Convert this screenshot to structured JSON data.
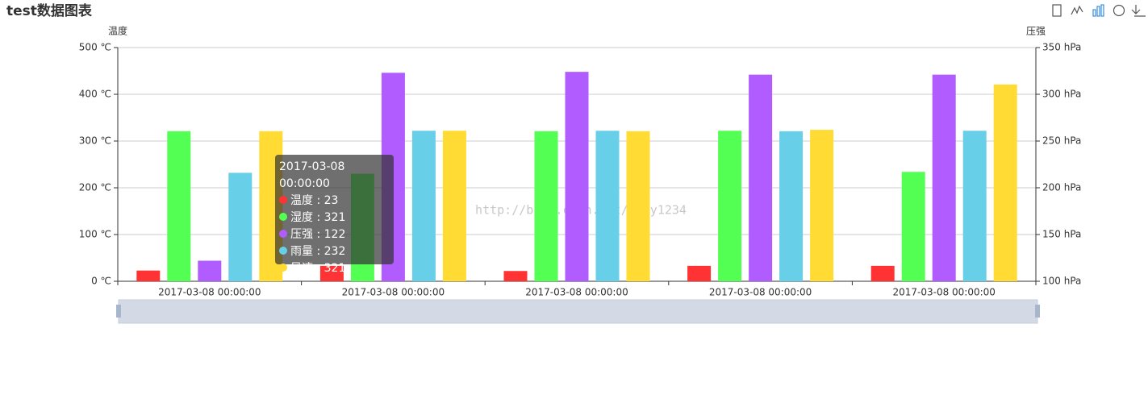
{
  "chart_data": {
    "type": "bar",
    "title": "test数据图表",
    "y_label": "温度",
    "y2_label": "压强",
    "watermark": "http://blog.csdn.net/Aray1234",
    "categories": [
      "2017-03-08 00:00:00",
      "2017-03-08 00:00:00",
      "2017-03-08 00:00:00",
      "2017-03-08 00:00:00",
      "2017-03-08 00:00:00"
    ],
    "series": [
      {
        "name": "温度",
        "color": "#ff3333",
        "values": [
          23,
          33,
          22,
          33,
          33
        ]
      },
      {
        "name": "湿度",
        "color": "#53ff53",
        "values": [
          321,
          230,
          321,
          322,
          234
        ]
      },
      {
        "name": "压强",
        "color": "#b05cff",
        "axis": "y2",
        "values": [
          122,
          323,
          324,
          321,
          321
        ]
      },
      {
        "name": "雨量",
        "color": "#67cfe8",
        "values": [
          232,
          322,
          322,
          321,
          322
        ]
      },
      {
        "name": "风速",
        "color": "#ffdb33",
        "values": [
          321,
          322,
          321,
          324,
          421
        ]
      }
    ],
    "ylim": [
      0,
      500
    ],
    "yticks": [
      {
        "value": 0,
        "label": "0 ℃"
      },
      {
        "value": 100,
        "label": "100 ℃"
      },
      {
        "value": 200,
        "label": "200 ℃"
      },
      {
        "value": 300,
        "label": "300 ℃"
      },
      {
        "value": 400,
        "label": "400 ℃"
      },
      {
        "value": 500,
        "label": "500 ℃"
      }
    ],
    "y2lim": [
      100,
      350
    ],
    "y2ticks": [
      {
        "value": 100,
        "label": "100 hPa"
      },
      {
        "value": 150,
        "label": "150 hPa"
      },
      {
        "value": 200,
        "label": "200 hPa"
      },
      {
        "value": 250,
        "label": "250 hPa"
      },
      {
        "value": 300,
        "label": "300 hPa"
      },
      {
        "value": 350,
        "label": "350 hPa"
      }
    ],
    "grid": true,
    "tooltip_index": 0
  }
}
